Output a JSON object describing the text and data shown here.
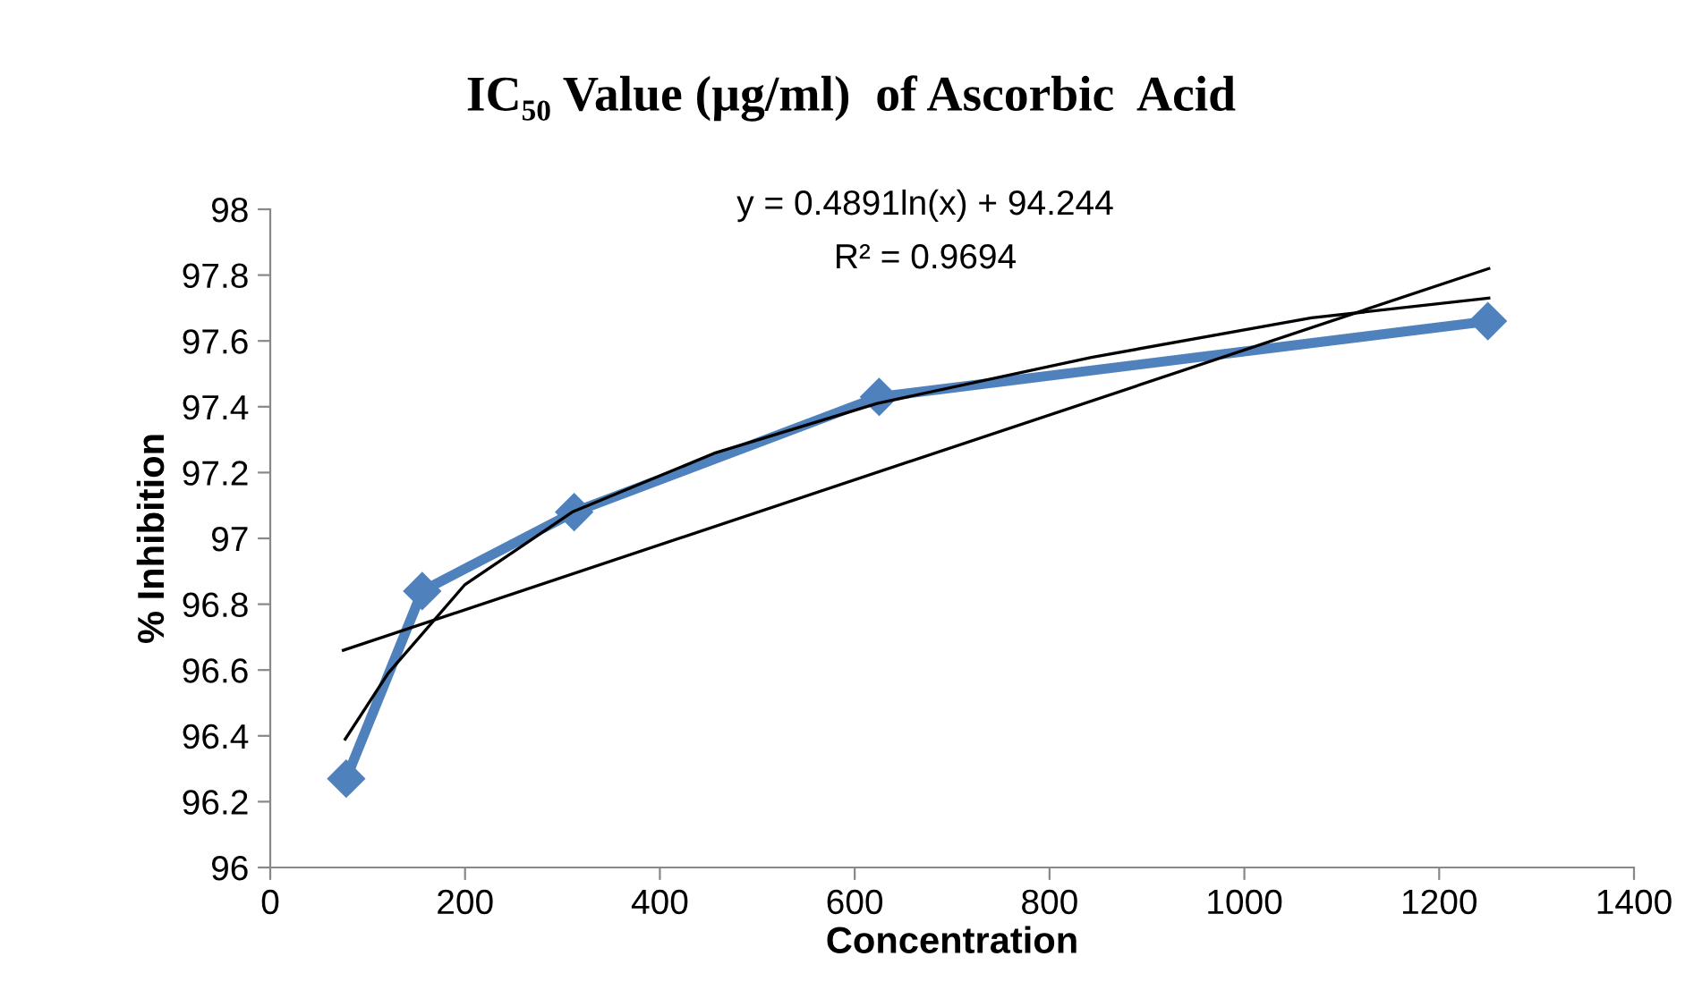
{
  "chart_data": {
    "type": "line",
    "title": "IC₅₀ Value (µg/ml)  of Ascorbic  Acid",
    "xlabel": "Concentration",
    "ylabel": "% Inhibition",
    "xlim": [
      0,
      1400
    ],
    "xticks": [
      0,
      200,
      400,
      600,
      800,
      1000,
      1200,
      1400
    ],
    "ylim": [
      96,
      98
    ],
    "yticks": [
      96,
      96.2,
      96.4,
      96.6,
      96.8,
      97,
      97.2,
      97.4,
      97.6,
      97.8,
      98
    ],
    "grid": false,
    "legend": false,
    "series": [
      {
        "color": "#4f81bd",
        "marker": "diamond",
        "line_style": "solid",
        "x": [
          78,
          156,
          312,
          625,
          1250
        ],
        "values": [
          96.27,
          96.84,
          97.08,
          97.43,
          97.66
        ]
      },
      {
        "type": "line",
        "color": "#000000",
        "marker": "none",
        "line_style": "solid",
        "x": [
          77,
          121,
          200,
          310,
          457,
          623,
          843,
          1069,
          1251
        ],
        "values": [
          96.39,
          96.59,
          96.86,
          97.08,
          97.26,
          97.41,
          97.55,
          97.67,
          97.73
        ]
      },
      {
        "type": "line",
        "color": "#000000",
        "marker": "none",
        "line_style": "solid",
        "x": [
          75,
          1251
        ],
        "values": [
          96.66,
          97.82
        ]
      }
    ],
    "annotations": [
      "y = 0.4891ln(x) + 94.244",
      "R² = 0.9694"
    ]
  }
}
